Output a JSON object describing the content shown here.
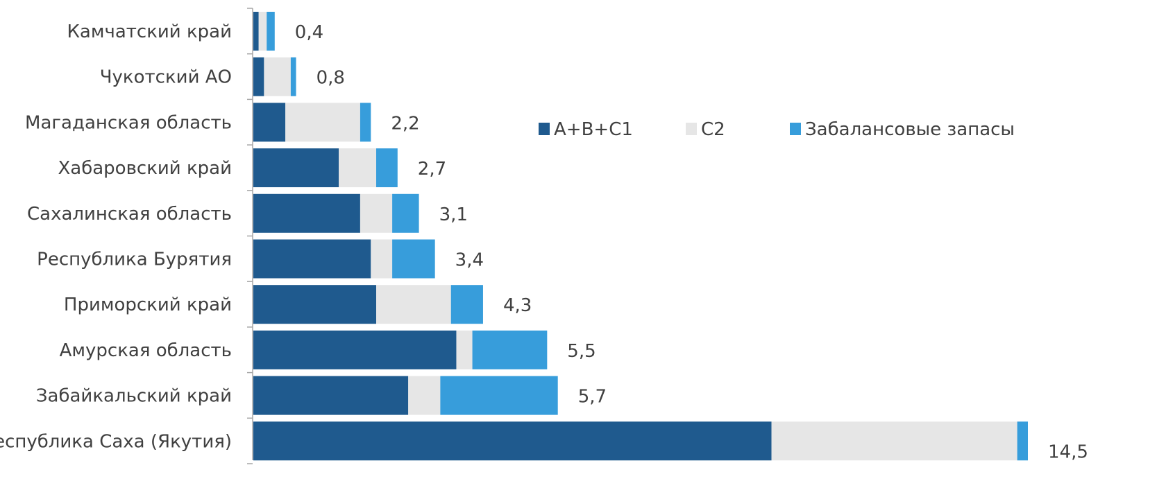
{
  "chart_data": {
    "type": "bar",
    "orientation": "horizontal",
    "stacked": true,
    "title": "",
    "xlabel": "",
    "ylabel": "",
    "categories": [
      "Камчатский край",
      "Чукотский АО",
      "Магаданская область",
      "Хабаровский край",
      "Сахалинская область",
      "Республика Бурятия",
      "Приморский край",
      "Амурская область",
      "Забайкальский край",
      "Республика Саха (Якутия)"
    ],
    "series": [
      {
        "name": "A+B+C1",
        "color": "#1f5a8e",
        "values": [
          0.1,
          0.2,
          0.6,
          1.6,
          2.0,
          2.2,
          2.3,
          3.8,
          2.9,
          9.7
        ]
      },
      {
        "name": "C2",
        "color": "#e6e6e6",
        "values": [
          0.15,
          0.5,
          1.4,
          0.7,
          0.6,
          0.4,
          1.4,
          0.3,
          0.6,
          4.6
        ]
      },
      {
        "name": "Забалансовые запасы",
        "color": "#379ddb",
        "values": [
          0.15,
          0.1,
          0.2,
          0.4,
          0.5,
          0.8,
          0.6,
          1.4,
          2.2,
          0.2
        ]
      }
    ],
    "totals": [
      "0,4",
      "0,8",
      "2,2",
      "2,7",
      "3,1",
      "3,4",
      "4,3",
      "5,5",
      "5,7",
      "14,5"
    ],
    "xlim": [
      0,
      14.5
    ],
    "grid": false,
    "legend_position": "right"
  }
}
